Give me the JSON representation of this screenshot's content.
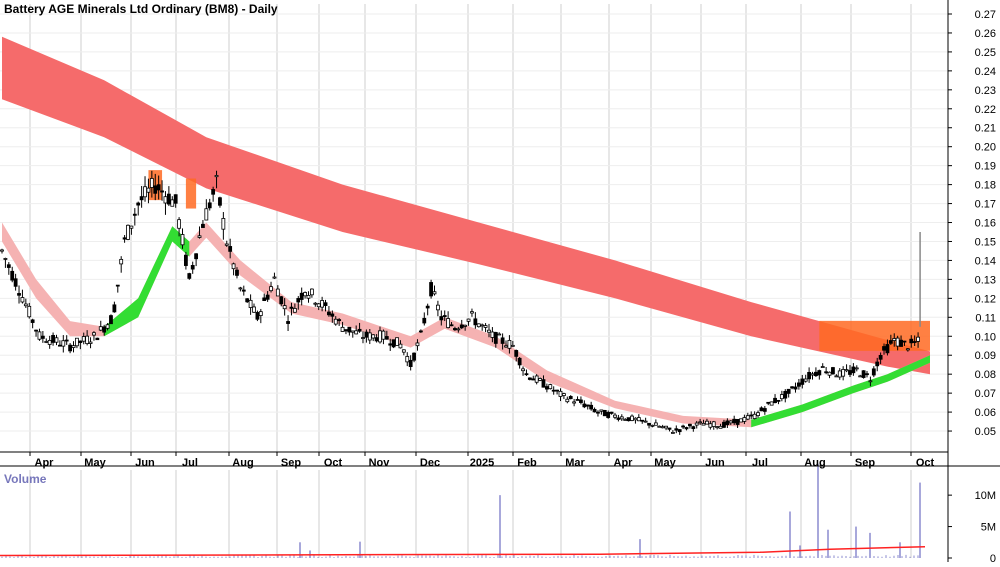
{
  "chart_data": {
    "type": "candlestick",
    "title": "Battery AGE Minerals Ltd Ordinary (BM8) - Daily",
    "price_axis": {
      "ylim": [
        0.04,
        0.27
      ],
      "ticks": [
        "0.27",
        "0.26",
        "0.25",
        "0.24",
        "0.23",
        "0.22",
        "0.21",
        "0.20",
        "0.19",
        "0.18",
        "0.17",
        "0.16",
        "0.15",
        "0.14",
        "0.13",
        "0.12",
        "0.11",
        "0.10",
        "0.09",
        "0.08",
        "0.07",
        "0.06",
        "0.05"
      ]
    },
    "volume_panel": {
      "label": "Volume",
      "ylim": [
        0,
        14
      ],
      "ticks": [
        "10M",
        "5M",
        "0"
      ]
    },
    "x_axis": {
      "month_labels": [
        "Apr",
        "May",
        "Jun",
        "Jul",
        "Aug",
        "Sep",
        "Oct",
        "Nov",
        "Dec",
        "2025",
        "Feb",
        "Mar",
        "Apr",
        "May",
        "Jun",
        "Jul",
        "Aug",
        "Sep",
        "Oct"
      ],
      "num_days": 400
    },
    "price_series": [
      {
        "d": 0,
        "p": 0.145
      },
      {
        "d": 10,
        "p": 0.125
      },
      {
        "d": 22,
        "p": 0.1
      },
      {
        "d": 40,
        "p": 0.095
      },
      {
        "d": 55,
        "p": 0.1
      },
      {
        "d": 65,
        "p": 0.11
      },
      {
        "d": 72,
        "p": 0.15
      },
      {
        "d": 80,
        "p": 0.17
      },
      {
        "d": 90,
        "p": 0.18
      },
      {
        "d": 102,
        "p": 0.17
      },
      {
        "d": 110,
        "p": 0.13
      },
      {
        "d": 118,
        "p": 0.16
      },
      {
        "d": 126,
        "p": 0.18
      },
      {
        "d": 132,
        "p": 0.15
      },
      {
        "d": 140,
        "p": 0.125
      },
      {
        "d": 150,
        "p": 0.11
      },
      {
        "d": 160,
        "p": 0.13
      },
      {
        "d": 168,
        "p": 0.11
      },
      {
        "d": 178,
        "p": 0.125
      },
      {
        "d": 190,
        "p": 0.115
      },
      {
        "d": 200,
        "p": 0.105
      },
      {
        "d": 212,
        "p": 0.1
      },
      {
        "d": 224,
        "p": 0.1
      },
      {
        "d": 235,
        "p": 0.095
      },
      {
        "d": 240,
        "p": 0.085
      },
      {
        "d": 246,
        "p": 0.1
      },
      {
        "d": 252,
        "p": 0.125
      },
      {
        "d": 258,
        "p": 0.11
      },
      {
        "d": 266,
        "p": 0.105
      },
      {
        "d": 276,
        "p": 0.11
      },
      {
        "d": 288,
        "p": 0.1
      },
      {
        "d": 300,
        "p": 0.095
      },
      {
        "d": 308,
        "p": 0.08
      },
      {
        "d": 318,
        "p": 0.075
      },
      {
        "d": 330,
        "p": 0.068
      },
      {
        "d": 340,
        "p": 0.065
      },
      {
        "d": 350,
        "p": 0.06
      },
      {
        "d": 360,
        "p": 0.058
      },
      {
        "d": 372,
        "p": 0.056
      },
      {
        "d": 384,
        "p": 0.053
      },
      {
        "d": 394,
        "p": 0.05
      },
      {
        "d": 402,
        "p": 0.052
      },
      {
        "d": 412,
        "p": 0.054
      },
      {
        "d": 422,
        "p": 0.053
      },
      {
        "d": 432,
        "p": 0.055
      },
      {
        "d": 442,
        "p": 0.058
      },
      {
        "d": 452,
        "p": 0.065
      },
      {
        "d": 462,
        "p": 0.07
      },
      {
        "d": 472,
        "p": 0.078
      },
      {
        "d": 482,
        "p": 0.083
      },
      {
        "d": 492,
        "p": 0.08
      },
      {
        "d": 502,
        "p": 0.082
      },
      {
        "d": 510,
        "p": 0.078
      },
      {
        "d": 516,
        "p": 0.09
      },
      {
        "d": 524,
        "p": 0.098
      },
      {
        "d": 532,
        "p": 0.095
      },
      {
        "d": 538,
        "p": 0.097
      }
    ],
    "long_band": {
      "upper": [
        [
          0,
          0.258
        ],
        [
          60,
          0.235
        ],
        [
          120,
          0.205
        ],
        [
          200,
          0.18
        ],
        [
          280,
          0.16
        ],
        [
          360,
          0.14
        ],
        [
          440,
          0.118
        ],
        [
          520,
          0.098
        ],
        [
          545,
          0.092
        ]
      ],
      "lower": [
        [
          0,
          0.225
        ],
        [
          60,
          0.205
        ],
        [
          120,
          0.178
        ],
        [
          200,
          0.155
        ],
        [
          280,
          0.138
        ],
        [
          360,
          0.12
        ],
        [
          440,
          0.1
        ],
        [
          520,
          0.084
        ],
        [
          545,
          0.08
        ]
      ]
    },
    "short_band": {
      "upper": [
        [
          0,
          0.16
        ],
        [
          20,
          0.13
        ],
        [
          40,
          0.108
        ],
        [
          60,
          0.105
        ],
        [
          80,
          0.12
        ],
        [
          100,
          0.158
        ],
        [
          110,
          0.15
        ],
        [
          120,
          0.16
        ],
        [
          140,
          0.14
        ],
        [
          170,
          0.118
        ],
        [
          200,
          0.112
        ],
        [
          240,
          0.1
        ],
        [
          260,
          0.11
        ],
        [
          290,
          0.1
        ],
        [
          320,
          0.082
        ],
        [
          360,
          0.066
        ],
        [
          400,
          0.058
        ],
        [
          440,
          0.056
        ],
        [
          470,
          0.064
        ],
        [
          500,
          0.074
        ],
        [
          520,
          0.08
        ],
        [
          545,
          0.09
        ]
      ],
      "lower": [
        [
          0,
          0.15
        ],
        [
          20,
          0.12
        ],
        [
          40,
          0.1
        ],
        [
          60,
          0.1
        ],
        [
          80,
          0.11
        ],
        [
          100,
          0.15
        ],
        [
          110,
          0.142
        ],
        [
          120,
          0.152
        ],
        [
          140,
          0.132
        ],
        [
          170,
          0.112
        ],
        [
          200,
          0.106
        ],
        [
          240,
          0.094
        ],
        [
          260,
          0.104
        ],
        [
          290,
          0.094
        ],
        [
          320,
          0.076
        ],
        [
          360,
          0.062
        ],
        [
          400,
          0.054
        ],
        [
          440,
          0.052
        ],
        [
          470,
          0.06
        ],
        [
          500,
          0.07
        ],
        [
          520,
          0.076
        ],
        [
          545,
          0.086
        ]
      ]
    },
    "volume": [
      {
        "d": 300,
        "v": 2.5
      },
      {
        "d": 310,
        "v": 1.2
      },
      {
        "d": 360,
        "v": 2.6
      },
      {
        "d": 500,
        "v": 10.0
      },
      {
        "d": 640,
        "v": 3.0
      },
      {
        "d": 790,
        "v": 7.4
      },
      {
        "d": 800,
        "v": 2.0
      },
      {
        "d": 818,
        "v": 15.0
      },
      {
        "d": 828,
        "v": 4.5
      },
      {
        "d": 856,
        "v": 5.0
      },
      {
        "d": 870,
        "v": 4.0
      },
      {
        "d": 900,
        "v": 2.5
      },
      {
        "d": 920,
        "v": 12.0
      }
    ],
    "colors": {
      "long_band": "#f56b6b",
      "short_band": "#f5b2b2",
      "crossover_up": "#33dd33",
      "crossover_down": "#ff6a22",
      "up_candle": "#ffffff",
      "down_candle": "#000000",
      "volume_bar": "#8b8bcf",
      "volume_ma": "#ff2222",
      "grid": "#cfcfcf"
    }
  }
}
